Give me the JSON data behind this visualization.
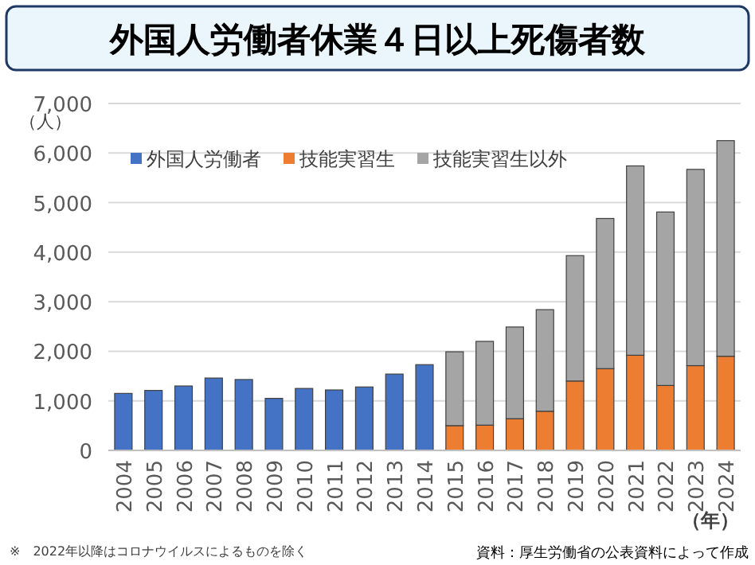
{
  "chart_data": {
    "type": "bar",
    "title": "外国人労働者休業４日以上死傷者数",
    "categories": [
      "2004",
      "2005",
      "2006",
      "2007",
      "2008",
      "2009",
      "2010",
      "2011",
      "2012",
      "2013",
      "2014",
      "2015",
      "2016",
      "2017",
      "2018",
      "2019",
      "2020",
      "2021",
      "2022",
      "2023",
      "2024"
    ],
    "stacked": true,
    "series": [
      {
        "name": "外国人労働者",
        "color": "#4472c4",
        "values": [
          1150,
          1210,
          1300,
          1460,
          1430,
          1050,
          1250,
          1220,
          1280,
          1540,
          1730,
          null,
          null,
          null,
          null,
          null,
          null,
          null,
          null,
          null,
          null
        ]
      },
      {
        "name": "技能実習生",
        "color": "#ed7d31",
        "values": [
          null,
          null,
          null,
          null,
          null,
          null,
          null,
          null,
          null,
          null,
          null,
          500,
          510,
          640,
          790,
          1400,
          1650,
          1920,
          1310,
          1710,
          1900
        ]
      },
      {
        "name": "技能実習生以外",
        "color": "#a5a5a5",
        "values": [
          null,
          null,
          null,
          null,
          null,
          null,
          null,
          null,
          null,
          null,
          null,
          1490,
          1690,
          1850,
          2050,
          2530,
          3030,
          3820,
          3500,
          3960,
          4350
        ]
      }
    ],
    "ylim": [
      0,
      7000
    ],
    "yticks": [
      {
        "value": 0,
        "label": "0"
      },
      {
        "value": 1000,
        "label": "1,000"
      },
      {
        "value": 2000,
        "label": "2,000"
      },
      {
        "value": 3000,
        "label": "3,000"
      },
      {
        "value": 4000,
        "label": "4,000"
      },
      {
        "value": 5000,
        "label": "5,000"
      },
      {
        "value": 6000,
        "label": "6,000"
      },
      {
        "value": 7000,
        "label": "7,000"
      }
    ],
    "ylabel": "（人）",
    "xlabel": "（年）",
    "grid": "y",
    "legend": "top left",
    "annotations": [
      "※　2022年以降はコロナウイルスによるものを除く",
      "資料：厚生労働省の公表資料によって作成"
    ]
  }
}
